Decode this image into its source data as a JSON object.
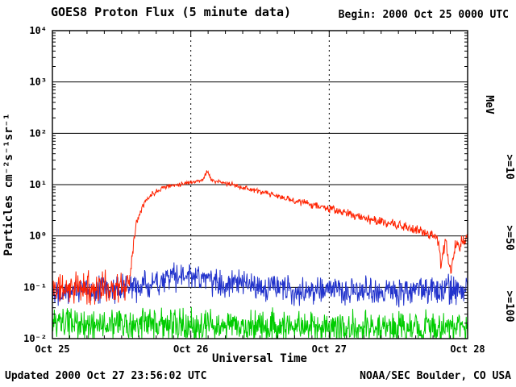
{
  "chart_data": {
    "type": "line",
    "title": "GOES8 Proton Flux (5 minute data)",
    "begin_label": "Begin: 2000 Oct 25 0000 UTC",
    "xlabel": "Universal Time",
    "ylabel": "Particles cm⁻²s⁻¹sr⁻¹",
    "legend_unit": "MeV",
    "x_tick_labels": [
      "Oct 25",
      "Oct 26",
      "Oct 27",
      "Oct 28"
    ],
    "y_tick_exponents": [
      4,
      3,
      2,
      1,
      0,
      -1,
      -2
    ],
    "y_tick_labels": [
      "10⁴",
      "10³",
      "10²",
      "10¹",
      "10⁰",
      "10⁻¹",
      "10⁻²"
    ],
    "x_range_days": 3,
    "y_log_range": [
      -2,
      4
    ],
    "points_per_day": 288,
    "grid": {
      "horizontal_decades": "solid",
      "vertical_days": "dashed"
    },
    "series": [
      {
        "name": "protons >=10 MeV",
        "label": ">=10",
        "color": "#ff2200",
        "seed": 11,
        "trend": [
          [
            0,
            -1.02
          ],
          [
            0.52,
            -1.0
          ],
          [
            0.555,
            -0.9
          ],
          [
            0.58,
            -0.25
          ],
          [
            0.61,
            0.3
          ],
          [
            0.65,
            0.6
          ],
          [
            0.72,
            0.82
          ],
          [
            0.8,
            0.95
          ],
          [
            0.9,
            1.0
          ],
          [
            1.0,
            1.05
          ],
          [
            1.08,
            1.08
          ],
          [
            1.12,
            1.27
          ],
          [
            1.15,
            1.08
          ],
          [
            1.3,
            1.0
          ],
          [
            1.5,
            0.86
          ],
          [
            1.7,
            0.72
          ],
          [
            1.9,
            0.6
          ],
          [
            2.1,
            0.46
          ],
          [
            2.3,
            0.32
          ],
          [
            2.5,
            0.2
          ],
          [
            2.65,
            0.1
          ],
          [
            2.78,
            0.0
          ],
          [
            2.81,
            -0.6
          ],
          [
            2.84,
            -0.05
          ],
          [
            2.88,
            -0.75
          ],
          [
            2.91,
            -0.2
          ],
          [
            2.95,
            -0.15
          ],
          [
            3,
            -0.05
          ]
        ],
        "noise": [
          [
            0,
            0.38
          ],
          [
            0.52,
            0.38
          ],
          [
            0.6,
            0.1
          ],
          [
            0.8,
            0.05
          ],
          [
            1.2,
            0.05
          ],
          [
            1.6,
            0.07
          ],
          [
            2.0,
            0.09
          ],
          [
            2.4,
            0.11
          ],
          [
            2.7,
            0.13
          ],
          [
            3,
            0.18
          ]
        ]
      },
      {
        "name": "protons >=50 MeV",
        "label": ">=50",
        "color": "#2233cc",
        "seed": 22,
        "trend": [
          [
            0,
            -1.05
          ],
          [
            0.55,
            -1.02
          ],
          [
            0.7,
            -0.95
          ],
          [
            0.85,
            -0.8
          ],
          [
            1.0,
            -0.78
          ],
          [
            1.15,
            -0.88
          ],
          [
            1.4,
            -0.98
          ],
          [
            1.8,
            -1.05
          ],
          [
            2.4,
            -1.08
          ],
          [
            3,
            -1.05
          ]
        ],
        "noise": [
          [
            0,
            0.33
          ],
          [
            3,
            0.33
          ]
        ]
      },
      {
        "name": "protons >=100 MeV",
        "label": ">=100",
        "color": "#00cc00",
        "seed": 33,
        "trend": [
          [
            0,
            -1.72
          ],
          [
            1,
            -1.75
          ],
          [
            2,
            -1.78
          ],
          [
            3,
            -1.78
          ]
        ],
        "noise": [
          [
            0,
            0.38
          ],
          [
            3,
            0.38
          ]
        ]
      }
    ],
    "footer": {
      "updated": "Updated 2000 Oct 27 23:56:02 UTC",
      "credit": "NOAA/SEC Boulder, CO USA"
    }
  }
}
